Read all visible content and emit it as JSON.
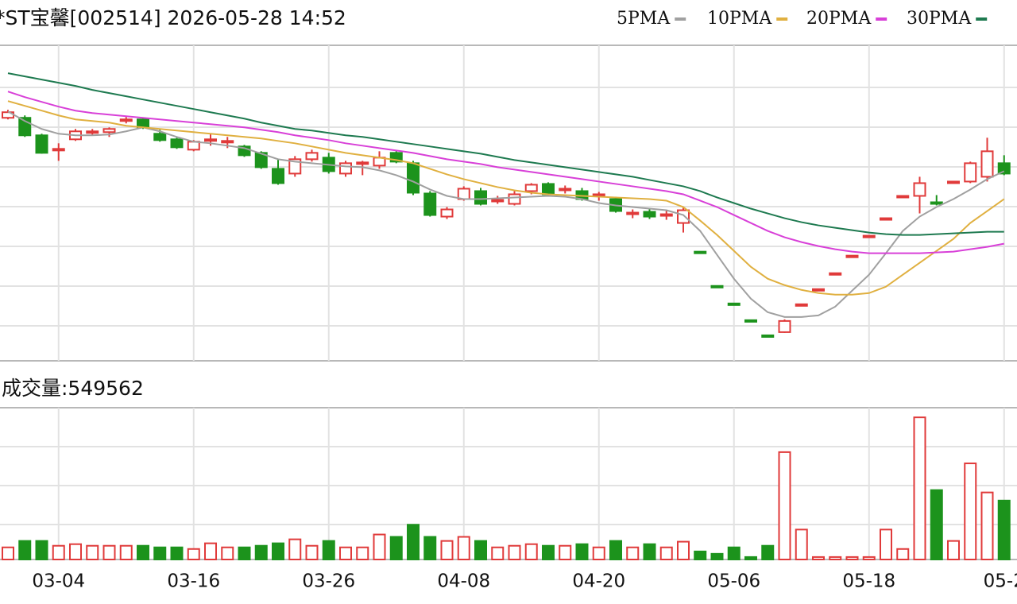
{
  "chart_data": {
    "type": "candlestick",
    "title": "*ST宝馨[002514] 2026-05-28 14:52",
    "categories": [
      null,
      null,
      null,
      "03-04",
      null,
      null,
      null,
      null,
      null,
      null,
      null,
      "03-16",
      null,
      null,
      null,
      null,
      null,
      null,
      null,
      "03-26",
      null,
      null,
      null,
      null,
      null,
      null,
      null,
      "04-08",
      null,
      null,
      null,
      null,
      null,
      null,
      null,
      "04-20",
      null,
      null,
      null,
      null,
      null,
      null,
      null,
      "05-06",
      null,
      null,
      null,
      null,
      null,
      null,
      null,
      "05-18",
      null,
      null,
      null,
      null,
      null,
      null,
      null,
      "05-2"
    ],
    "ylim": [
      0.07,
      4.03
    ],
    "up_color": "#e03a3a",
    "down_color": "#1c931c",
    "ohlc": {
      "open": [
        3.12,
        3.12,
        2.9,
        2.71,
        2.85,
        2.93,
        2.94,
        3.08,
        3.1,
        2.92,
        2.85,
        2.72,
        2.83,
        2.81,
        2.76,
        2.68,
        2.48,
        2.42,
        2.6,
        2.62,
        2.42,
        2.54,
        2.52,
        2.68,
        2.55,
        2.17,
        1.88,
        2.1,
        2.2,
        2.07,
        2.04,
        2.2,
        2.29,
        2.21,
        2.2,
        2.14,
        2.1,
        1.91,
        1.94,
        1.89,
        1.8,
        1.44,
        1.01,
        0.79,
        0.58,
        0.39,
        0.43,
        0.76,
        0.95,
        1.15,
        1.37,
        1.62,
        1.84,
        2.12,
        2.14,
        2.06,
        2.3,
        2.32,
        2.38,
        2.55
      ],
      "high": [
        3.22,
        3.15,
        2.92,
        2.8,
        2.98,
        2.98,
        3.0,
        3.13,
        3.12,
        2.97,
        2.87,
        2.84,
        2.92,
        2.88,
        2.78,
        2.7,
        2.6,
        2.64,
        2.72,
        2.68,
        2.58,
        2.58,
        2.7,
        2.7,
        2.58,
        2.2,
        2.0,
        2.26,
        2.24,
        2.14,
        2.2,
        2.3,
        2.31,
        2.27,
        2.24,
        2.19,
        2.13,
        1.97,
        1.98,
        1.96,
        2.0,
        1.44,
        1.01,
        0.79,
        0.58,
        0.39,
        0.59,
        0.78,
        0.97,
        1.17,
        1.39,
        1.64,
        1.86,
        2.14,
        2.38,
        2.15,
        2.32,
        2.57,
        2.87,
        2.65
      ],
      "low": [
        3.1,
        2.88,
        2.67,
        2.58,
        2.83,
        2.9,
        2.88,
        3.05,
        2.98,
        2.82,
        2.73,
        2.7,
        2.77,
        2.74,
        2.63,
        2.48,
        2.28,
        2.38,
        2.57,
        2.42,
        2.38,
        2.4,
        2.48,
        2.55,
        2.15,
        1.88,
        1.85,
        2.08,
        2.02,
        2.04,
        2.02,
        2.16,
        2.14,
        2.17,
        2.08,
        2.08,
        1.93,
        1.86,
        1.85,
        1.84,
        1.68,
        1.42,
        0.99,
        0.77,
        0.56,
        0.37,
        0.42,
        0.76,
        0.95,
        1.15,
        1.37,
        1.62,
        1.84,
        2.12,
        1.92,
        2.02,
        2.3,
        2.3,
        2.32,
        2.4
      ],
      "close": [
        3.19,
        2.9,
        2.68,
        2.73,
        2.95,
        2.95,
        2.98,
        3.1,
        3.0,
        2.84,
        2.75,
        2.82,
        2.85,
        2.83,
        2.65,
        2.5,
        2.3,
        2.6,
        2.68,
        2.45,
        2.55,
        2.56,
        2.62,
        2.57,
        2.18,
        1.9,
        1.97,
        2.23,
        2.04,
        2.09,
        2.16,
        2.28,
        2.16,
        2.23,
        2.1,
        2.16,
        1.95,
        1.93,
        1.88,
        1.91,
        1.96,
        1.42,
        0.99,
        0.77,
        0.56,
        0.37,
        0.57,
        0.78,
        0.97,
        1.17,
        1.39,
        1.64,
        1.86,
        2.14,
        2.3,
        2.04,
        2.32,
        2.55,
        2.7,
        2.42
      ]
    },
    "series": [
      {
        "name": "5PMA",
        "color": "#a0a0a0",
        "values": [
          3.2,
          3.08,
          2.98,
          2.92,
          2.9,
          2.9,
          2.91,
          2.95,
          3.0,
          2.95,
          2.88,
          2.82,
          2.8,
          2.77,
          2.74,
          2.67,
          2.6,
          2.57,
          2.55,
          2.53,
          2.51,
          2.5,
          2.46,
          2.4,
          2.32,
          2.22,
          2.14,
          2.1,
          2.1,
          2.11,
          2.12,
          2.13,
          2.14,
          2.13,
          2.1,
          2.05,
          2.02,
          2.0,
          1.98,
          1.96,
          1.9,
          1.7,
          1.4,
          1.1,
          0.85,
          0.68,
          0.62,
          0.62,
          0.64,
          0.75,
          0.95,
          1.15,
          1.42,
          1.7,
          1.88,
          2.0,
          2.1,
          2.22,
          2.35,
          2.45
        ]
      },
      {
        "name": "10PMA",
        "color": "#e0b040",
        "values": [
          3.33,
          3.27,
          3.21,
          3.15,
          3.1,
          3.08,
          3.06,
          3.02,
          3.0,
          2.98,
          2.96,
          2.94,
          2.92,
          2.9,
          2.88,
          2.86,
          2.83,
          2.8,
          2.76,
          2.72,
          2.68,
          2.65,
          2.62,
          2.59,
          2.55,
          2.48,
          2.41,
          2.35,
          2.3,
          2.25,
          2.21,
          2.18,
          2.16,
          2.15,
          2.14,
          2.13,
          2.12,
          2.11,
          2.1,
          2.08,
          2.0,
          1.83,
          1.65,
          1.45,
          1.25,
          1.1,
          1.02,
          0.96,
          0.92,
          0.9,
          0.9,
          0.92,
          1.0,
          1.15,
          1.3,
          1.45,
          1.6,
          1.8,
          1.95,
          2.1
        ]
      },
      {
        "name": "20PMA",
        "color": "#d840d8",
        "values": [
          3.45,
          3.38,
          3.32,
          3.26,
          3.21,
          3.18,
          3.16,
          3.14,
          3.12,
          3.1,
          3.08,
          3.06,
          3.04,
          3.02,
          3.0,
          2.97,
          2.94,
          2.9,
          2.87,
          2.84,
          2.8,
          2.77,
          2.74,
          2.71,
          2.68,
          2.64,
          2.6,
          2.57,
          2.54,
          2.5,
          2.47,
          2.44,
          2.41,
          2.38,
          2.35,
          2.32,
          2.29,
          2.26,
          2.23,
          2.2,
          2.16,
          2.08,
          2.0,
          1.9,
          1.8,
          1.7,
          1.62,
          1.56,
          1.51,
          1.47,
          1.44,
          1.42,
          1.42,
          1.42,
          1.42,
          1.43,
          1.44,
          1.47,
          1.5,
          1.54
        ]
      },
      {
        "name": "30PMA",
        "color": "#1e7a50",
        "values": [
          3.68,
          3.64,
          3.6,
          3.56,
          3.52,
          3.47,
          3.43,
          3.39,
          3.35,
          3.31,
          3.27,
          3.23,
          3.19,
          3.15,
          3.11,
          3.06,
          3.02,
          2.98,
          2.96,
          2.93,
          2.9,
          2.88,
          2.85,
          2.82,
          2.79,
          2.76,
          2.73,
          2.7,
          2.67,
          2.63,
          2.59,
          2.56,
          2.53,
          2.5,
          2.47,
          2.44,
          2.41,
          2.38,
          2.34,
          2.3,
          2.26,
          2.2,
          2.12,
          2.05,
          1.98,
          1.92,
          1.86,
          1.81,
          1.77,
          1.74,
          1.71,
          1.68,
          1.66,
          1.65,
          1.65,
          1.66,
          1.67,
          1.68,
          1.69,
          1.69
        ]
      }
    ],
    "volume": {
      "title": "成交量:549562",
      "ylim": [
        0,
        1415000
      ],
      "values": [
        113000,
        173000,
        173000,
        128000,
        143000,
        128000,
        128000,
        128000,
        128000,
        113000,
        113000,
        98000,
        151000,
        113000,
        113000,
        128000,
        151000,
        188000,
        128000,
        173000,
        113000,
        113000,
        233000,
        211000,
        324000,
        211000,
        173000,
        211000,
        173000,
        113000,
        128000,
        143000,
        128000,
        128000,
        143000,
        113000,
        173000,
        113000,
        143000,
        113000,
        166000,
        75000,
        53000,
        113000,
        23000,
        128000,
        1001000,
        279000,
        23000,
        23000,
        23000,
        23000,
        279000,
        98000,
        1325000,
        647000,
        173000,
        896000,
        625000,
        549562
      ]
    }
  }
}
